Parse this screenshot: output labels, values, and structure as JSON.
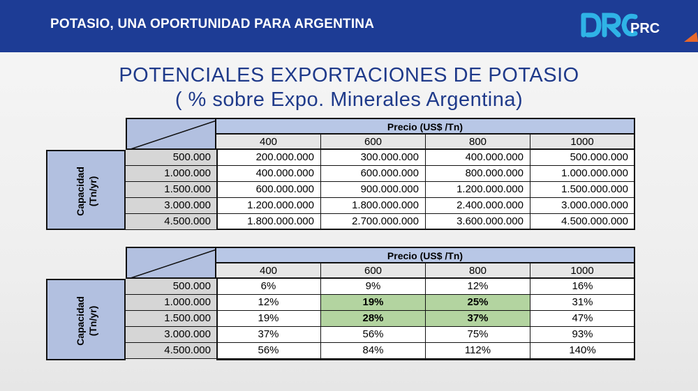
{
  "header": {
    "title": "POTASIO, UNA OPORTUNIDAD PARA ARGENTINA",
    "logo_text": "PRC",
    "logo_mark": "DRC"
  },
  "slide": {
    "title_line1": "POTENCIALES EXPORTACIONES DE POTASIO",
    "title_line2": "( % sobre Expo. Minerales Argentina)"
  },
  "colors": {
    "header_bg": "#1d3c95",
    "title": "#1f3a8a",
    "label_bg": "#b2c0e0",
    "highlight": "#b3d4a0"
  },
  "table1": {
    "price_header": "Precio (US$ /Tn)",
    "capacity_label_line1": "Capacidad",
    "capacity_label_line2": "(Tn/yr)",
    "prices": [
      "400",
      "600",
      "800",
      "1000"
    ],
    "rows": [
      {
        "capacity": "500.000",
        "values": [
          "200.000.000",
          "300.000.000",
          "400.000.000",
          "500.000.000"
        ]
      },
      {
        "capacity": "1.000.000",
        "values": [
          "400.000.000",
          "600.000.000",
          "800.000.000",
          "1.000.000.000"
        ]
      },
      {
        "capacity": "1.500.000",
        "values": [
          "600.000.000",
          "900.000.000",
          "1.200.000.000",
          "1.500.000.000"
        ]
      },
      {
        "capacity": "3.000.000",
        "values": [
          "1.200.000.000",
          "1.800.000.000",
          "2.400.000.000",
          "3.000.000.000"
        ]
      },
      {
        "capacity": "4.500.000",
        "values": [
          "1.800.000.000",
          "2.700.000.000",
          "3.600.000.000",
          "4.500.000.000"
        ]
      }
    ]
  },
  "table2": {
    "price_header": "Precio (US$ /Tn)",
    "capacity_label_line1": "Capacidad",
    "capacity_label_line2": "(Tn/yr)",
    "prices": [
      "400",
      "600",
      "800",
      "1000"
    ],
    "rows": [
      {
        "capacity": "500.000",
        "values": [
          "6%",
          "9%",
          "12%",
          "16%"
        ]
      },
      {
        "capacity": "1.000.000",
        "values": [
          "12%",
          "19%",
          "25%",
          "31%"
        ]
      },
      {
        "capacity": "1.500.000",
        "values": [
          "19%",
          "28%",
          "37%",
          "47%"
        ]
      },
      {
        "capacity": "3.000.000",
        "values": [
          "37%",
          "56%",
          "75%",
          "93%"
        ]
      },
      {
        "capacity": "4.500.000",
        "values": [
          "56%",
          "84%",
          "112%",
          "140%"
        ]
      }
    ],
    "highlighted": [
      [
        1,
        1
      ],
      [
        1,
        2
      ],
      [
        2,
        1
      ],
      [
        2,
        2
      ]
    ]
  }
}
